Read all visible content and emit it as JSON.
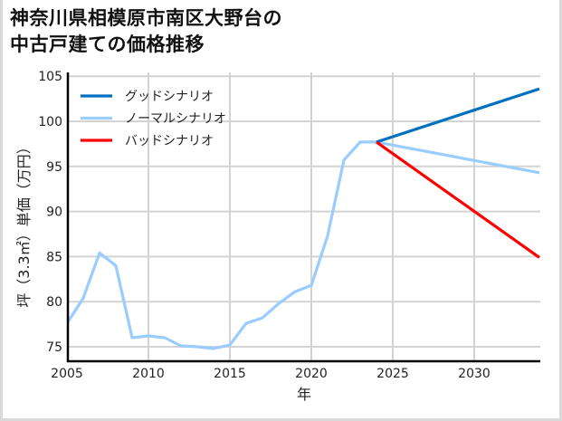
{
  "chart_data": {
    "type": "line",
    "title": "神奈川県相模原市南区大野台の中古戸建ての価格推移",
    "title_lines": [
      "神奈川県相模原市南区大野台の",
      "中古戸建ての価格推移"
    ],
    "xlabel": "年",
    "ylabel": "坪（3.3㎡）単価（万円）",
    "xlim": [
      2005,
      2034
    ],
    "ylim": [
      73.4,
      105.5
    ],
    "xticks": [
      2005,
      2010,
      2015,
      2020,
      2025,
      2030
    ],
    "yticks": [
      75,
      80,
      85,
      90,
      95,
      100,
      105
    ],
    "grid": true,
    "legend_position": "upper left",
    "series": [
      {
        "name": "グッドシナリオ",
        "color": "#0070c0",
        "x": [
          2024,
          2034
        ],
        "y": [
          97.7,
          103.6
        ]
      },
      {
        "name": "ノーマルシナリオ",
        "color": "#99ccff",
        "x": [
          2005,
          2006,
          2007,
          2008,
          2009,
          2010,
          2011,
          2012,
          2013,
          2014,
          2015,
          2016,
          2017,
          2018,
          2019,
          2020,
          2021,
          2022,
          2023,
          2024,
          2034
        ],
        "y": [
          77.6,
          80.4,
          85.4,
          84.0,
          76.0,
          76.2,
          76.0,
          75.1,
          75.0,
          74.8,
          75.2,
          77.6,
          78.2,
          79.8,
          81.1,
          81.8,
          87.3,
          95.7,
          97.7,
          97.7,
          94.3
        ]
      },
      {
        "name": "バッドシナリオ",
        "color": "#ff0000",
        "x": [
          2024,
          2034
        ],
        "y": [
          97.7,
          84.9
        ]
      }
    ]
  },
  "legend": {
    "items": [
      {
        "label": "グッドシナリオ",
        "color": "#0070c0"
      },
      {
        "label": "ノーマルシナリオ",
        "color": "#99ccff"
      },
      {
        "label": "バッドシナリオ",
        "color": "#ff0000"
      }
    ]
  },
  "colors": {
    "grid": "#d3d3d3",
    "axis": "#000000",
    "background": "#ffffff",
    "border": "#d9d9d9"
  }
}
